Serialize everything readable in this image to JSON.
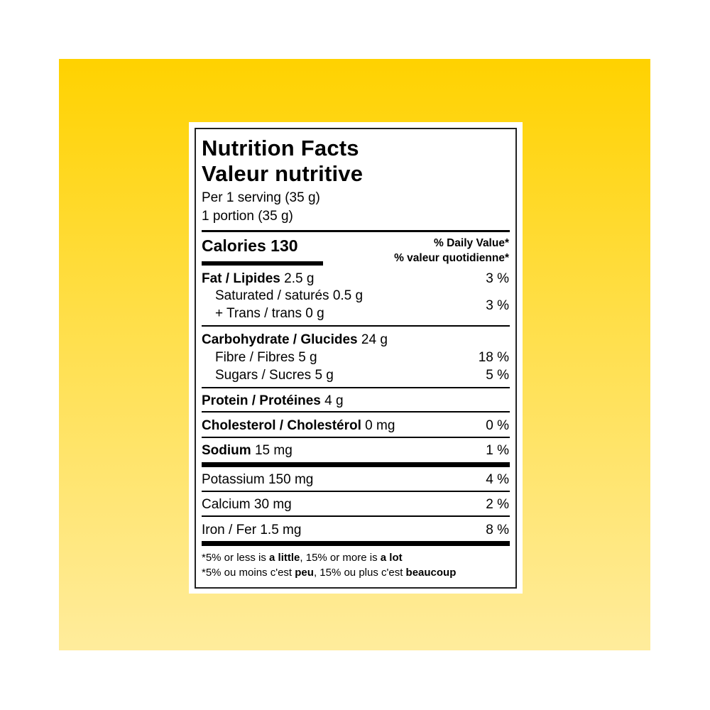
{
  "colors": {
    "background_top": "#FFD200",
    "background_bottom": "#FFEC9C",
    "label": "#FFFFFF",
    "text": "#000000"
  },
  "label": {
    "title_en": "Nutrition Facts",
    "title_fr": "Valeur nutritive",
    "serving_en": "Per 1 serving (35 g)",
    "serving_fr": "1 portion (35 g)",
    "calories_label": "Calories 130",
    "dv_en": "% Daily Value*",
    "dv_fr": "% valeur quotidienne*",
    "nutrients": {
      "fat": {
        "name": "Fat / Lipides",
        "amount": "2.5 g",
        "dv": "3 %"
      },
      "saturated": {
        "name": "Saturated / saturés 0.5 g"
      },
      "trans": {
        "name": "+ Trans / trans 0 g"
      },
      "sat_trans_dv": "3 %",
      "carb": {
        "name": "Carbohydrate / Glucides",
        "amount": "24 g"
      },
      "fibre": {
        "name": "Fibre / Fibres 5 g",
        "dv": "18 %"
      },
      "sugars": {
        "name": "Sugars / Sucres 5 g",
        "dv": "5 %"
      },
      "protein": {
        "name": "Protein / Protéines",
        "amount": "4 g"
      },
      "cholesterol": {
        "name": "Cholesterol / Cholestérol",
        "amount": "0 mg",
        "dv": "0 %"
      },
      "sodium": {
        "name": "Sodium",
        "amount": "15 mg",
        "dv": "1 %"
      },
      "potassium": {
        "name": "Potassium 150 mg",
        "dv": "4 %"
      },
      "calcium": {
        "name": "Calcium 30 mg",
        "dv": "2 %"
      },
      "iron": {
        "name": "Iron / Fer 1.5 mg",
        "dv": "8 %"
      }
    },
    "footnote_en": {
      "a": "*5% or less is ",
      "b": "a little",
      "c": ", 15% or more is ",
      "d": "a lot"
    },
    "footnote_fr": {
      "a": "*5% ou moins c'est ",
      "b": "peu",
      "c": ", 15% ou plus c'est ",
      "d": "beaucoup"
    }
  }
}
